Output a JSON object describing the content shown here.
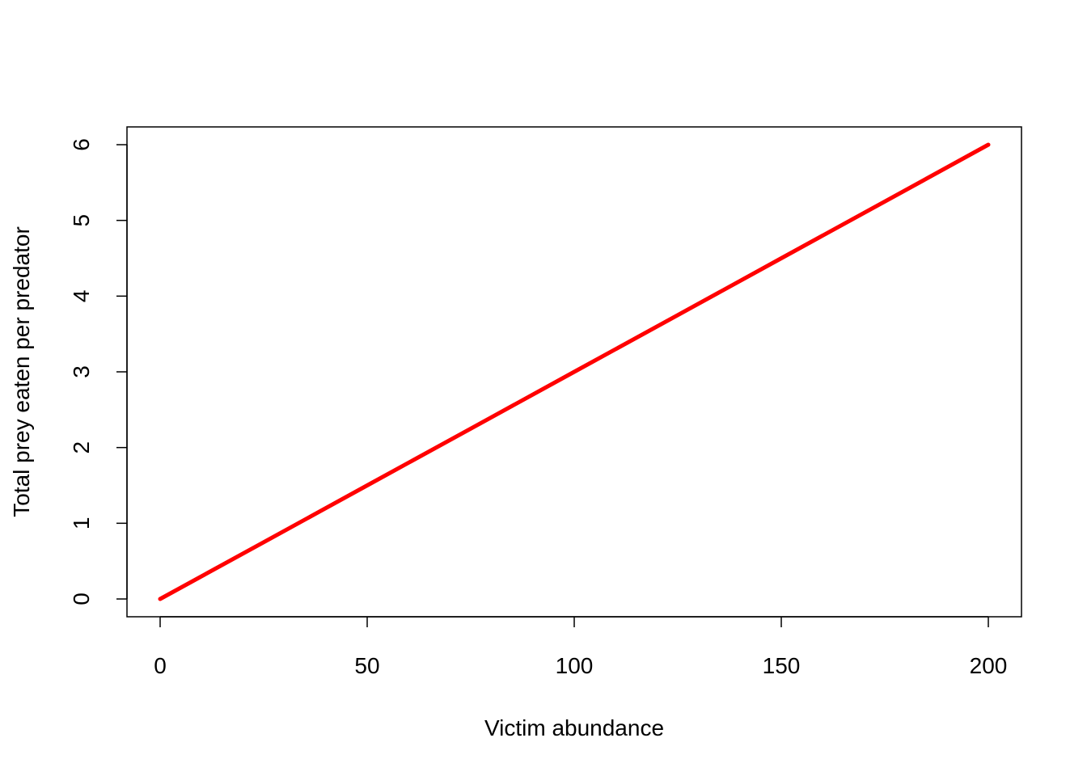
{
  "chart_data": {
    "type": "line",
    "title": "",
    "xlabel": "Victim abundance",
    "ylabel": "Total prey eaten per predator",
    "xlim": [
      0,
      200
    ],
    "ylim": [
      0,
      6
    ],
    "xticks": [
      0,
      50,
      100,
      150,
      200
    ],
    "yticks": [
      0,
      1,
      2,
      3,
      4,
      5,
      6
    ],
    "grid": false,
    "legend": "none",
    "series": [
      {
        "x": [
          0,
          25,
          50,
          75,
          100,
          125,
          150,
          175,
          200
        ],
        "y": [
          0,
          0.75,
          1.5,
          2.25,
          3.0,
          3.75,
          4.5,
          5.25,
          6.0
        ],
        "color": "#ff0000"
      }
    ]
  }
}
